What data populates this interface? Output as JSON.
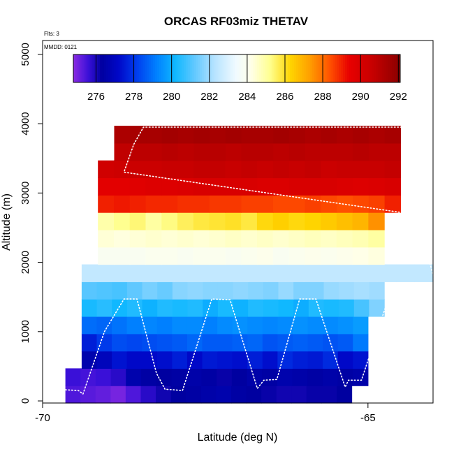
{
  "chart_data": {
    "type": "heatmap",
    "title": "ORCAS RF03miz THETAV",
    "xlabel": "Latitude (deg N)",
    "ylabel": "Altitude (m)",
    "notes": [
      "Flts: 3",
      "MMDD: 0121"
    ],
    "xlim": [
      -70,
      -64
    ],
    "ylim": [
      -30,
      5200
    ],
    "x_ticks": [
      {
        "value": -70,
        "label": "-70"
      },
      {
        "value": -65,
        "label": "-65"
      }
    ],
    "y_ticks": [
      {
        "value": 0,
        "label": "0"
      },
      {
        "value": 1000,
        "label": "1000"
      },
      {
        "value": 2000,
        "label": "2000"
      },
      {
        "value": 3000,
        "label": "3000"
      },
      {
        "value": 4000,
        "label": "4000"
      },
      {
        "value": 5000,
        "label": "5000"
      }
    ],
    "colorbar": {
      "range": [
        274.8,
        292.1
      ],
      "ticks": [
        {
          "value": 276,
          "label": "276"
        },
        {
          "value": 278,
          "label": "278"
        },
        {
          "value": 280,
          "label": "280"
        },
        {
          "value": 282,
          "label": "282"
        },
        {
          "value": 284,
          "label": "284"
        },
        {
          "value": 286,
          "label": "286"
        },
        {
          "value": 288,
          "label": "288"
        },
        {
          "value": 290,
          "label": "290"
        },
        {
          "value": 292,
          "label": "292"
        }
      ],
      "stops": [
        {
          "v": 274.8,
          "c": "#8a2be2"
        },
        {
          "v": 275.6,
          "c": "#3a10d8"
        },
        {
          "v": 276.3,
          "c": "#0000a0"
        },
        {
          "v": 277.2,
          "c": "#0008c8"
        },
        {
          "v": 278.2,
          "c": "#0040ee"
        },
        {
          "v": 279.2,
          "c": "#0080ff"
        },
        {
          "v": 280.2,
          "c": "#10b8ff"
        },
        {
          "v": 281.2,
          "c": "#60c8ff"
        },
        {
          "v": 282.3,
          "c": "#b8e4ff"
        },
        {
          "v": 283.4,
          "c": "#f0faff"
        },
        {
          "v": 284.2,
          "c": "#ffffe8"
        },
        {
          "v": 285.2,
          "c": "#ffff90"
        },
        {
          "v": 286.3,
          "c": "#ffd400"
        },
        {
          "v": 287.3,
          "c": "#ffa000"
        },
        {
          "v": 288.4,
          "c": "#ff5000"
        },
        {
          "v": 289.4,
          "c": "#e80000"
        },
        {
          "v": 290.6,
          "c": "#c80000"
        },
        {
          "v": 292.1,
          "c": "#8b0000"
        }
      ]
    },
    "bin_edges_alt": [
      -30,
      220,
      470,
      720,
      970,
      1220,
      1470,
      1720,
      1970,
      2220,
      2470,
      2720,
      2970,
      3220,
      3470,
      3720,
      3970
    ],
    "rows": [
      {
        "x0": -69.65,
        "x1": -65.25,
        "values": [
          275.4,
          275.3,
          275.2,
          275.0,
          275.4,
          275.8,
          276.1,
          276.3,
          276.4,
          276.5,
          276.6,
          276.4,
          276.3,
          276.2,
          276.1,
          276.1,
          276.2,
          276.2,
          276.3
        ]
      },
      {
        "x0": -69.65,
        "x1": -65.0,
        "values": [
          275.6,
          275.5,
          275.6,
          275.8,
          276.6,
          276.4,
          276.3,
          276.4,
          276.5,
          276.4,
          276.2,
          276.3,
          276.5,
          276.4,
          276.6,
          276.5,
          276.4,
          276.5,
          276.4,
          276.5
        ]
      },
      {
        "x0": -69.4,
        "x1": -65.0,
        "values": [
          276.6,
          276.9,
          277.4,
          277.2,
          277.2,
          277.3,
          277.6,
          277.2,
          277.5,
          277.4,
          277.3,
          277.6,
          277.3,
          277.8,
          277.6,
          277.5,
          277.8,
          277.2,
          277.4
        ]
      },
      {
        "x0": -69.4,
        "x1": -65.0,
        "values": [
          277.6,
          278.1,
          278.4,
          278.3,
          278.4,
          278.5,
          278.6,
          278.8,
          278.6,
          278.6,
          278.7,
          278.8,
          278.5,
          278.6,
          278.7,
          278.6,
          278.5,
          278.6,
          279.1
        ]
      },
      {
        "x0": -69.4,
        "x1": -65.0,
        "values": [
          278.9,
          278.8,
          279.0,
          279.2,
          279.3,
          279.2,
          279.4,
          279.4,
          279.2,
          279.4,
          279.5,
          279.4,
          279.3,
          279.4,
          279.5,
          279.4,
          279.4,
          279.5,
          279.7
        ]
      },
      {
        "x0": -69.4,
        "x1": -64.75,
        "values": [
          280.3,
          280.5,
          280.2,
          280.4,
          280.1,
          280.4,
          280.3,
          280.4,
          280.0,
          280.3,
          280.1,
          280.4,
          280.3,
          280.2,
          280.0,
          280.4,
          280.3,
          280.4,
          280.9,
          281.6
        ]
      },
      {
        "x0": -69.4,
        "x1": -64.75,
        "values": [
          281.1,
          281.0,
          280.9,
          281.2,
          281.5,
          281.3,
          281.7,
          281.8,
          281.7,
          281.7,
          281.8,
          281.7,
          281.6,
          281.9,
          281.6,
          281.6,
          281.9,
          282.0,
          282.1,
          282.0
        ]
      },
      {
        "x0": -69.4,
        "x1": -64.0,
        "values": [
          282.5,
          282.5,
          282.5,
          282.5,
          282.5,
          282.5,
          282.5,
          282.5,
          282.5,
          282.5,
          282.5,
          282.5,
          282.5,
          282.5,
          282.5,
          282.5,
          282.5,
          282.5,
          282.5
        ]
      },
      {
        "x0": -69.15,
        "x1": -64.75,
        "values": [
          283.9,
          283.9,
          283.9,
          284.0,
          284.0,
          283.9,
          284.0,
          284.0,
          283.9,
          284.0,
          284.1,
          283.9,
          284.0,
          284.1,
          284.0,
          284.1,
          284.2,
          284.3
        ]
      },
      {
        "x0": -69.15,
        "x1": -64.75,
        "values": [
          284.4,
          284.3,
          284.4,
          284.5,
          284.4,
          284.5,
          284.4,
          284.5,
          284.6,
          284.5,
          284.6,
          284.5,
          284.6,
          284.7,
          284.6,
          284.7,
          284.8,
          285.0
        ]
      },
      {
        "x0": -69.15,
        "x1": -64.75,
        "values": [
          284.9,
          285.2,
          285.4,
          285.0,
          285.3,
          285.6,
          285.8,
          285.9,
          286.0,
          285.8,
          286.2,
          286.4,
          286.2,
          286.3,
          286.5,
          286.7,
          286.9,
          287.5
        ]
      },
      {
        "x0": -69.15,
        "x1": -64.5,
        "values": [
          289.0,
          289.1,
          289.0,
          288.9,
          288.9,
          288.8,
          288.8,
          288.7,
          288.7,
          288.6,
          288.6,
          288.5,
          288.5,
          288.6,
          288.5,
          288.4,
          288.5,
          288.6,
          289.0
        ]
      },
      {
        "x0": -69.15,
        "x1": -64.5,
        "values": [
          289.6,
          289.6,
          289.7,
          289.8,
          289.8,
          289.9,
          290.0,
          290.0,
          290.0,
          290.0,
          289.9,
          289.9,
          290.0,
          290.0,
          290.0,
          289.9,
          289.8,
          289.9,
          290.0
        ]
      },
      {
        "x0": -69.15,
        "x1": -64.5,
        "values": [
          290.3,
          290.4,
          290.5,
          290.5,
          290.6,
          290.6,
          290.7,
          290.7,
          290.6,
          290.7,
          290.6,
          290.7,
          290.6,
          290.7,
          290.5,
          290.6,
          290.6,
          290.6,
          290.7
        ]
      },
      {
        "x0": -68.9,
        "x1": -64.5,
        "values": [
          290.8,
          290.9,
          290.9,
          291.0,
          290.9,
          291.0,
          291.0,
          290.9,
          291.0,
          291.0,
          290.9,
          291.0,
          290.9,
          290.9,
          290.9,
          291.0,
          290.9,
          290.9
        ]
      },
      {
        "x0": -68.9,
        "x1": -64.5,
        "values": [
          291.3,
          291.4,
          291.4,
          291.5,
          291.4,
          291.5,
          291.4,
          291.5,
          291.4,
          291.4,
          291.5,
          291.4,
          291.3,
          291.4,
          291.3,
          291.4,
          291.3,
          291.4
        ]
      }
    ],
    "flight_track": [
      {
        "lat": -69.65,
        "alt": 160
      },
      {
        "lat": -69.45,
        "alt": 150
      },
      {
        "lat": -69.38,
        "alt": 100
      },
      {
        "lat": -69.05,
        "alt": 1000
      },
      {
        "lat": -68.75,
        "alt": 1470
      },
      {
        "lat": -68.55,
        "alt": 1470
      },
      {
        "lat": -68.25,
        "alt": 400
      },
      {
        "lat": -68.12,
        "alt": 170
      },
      {
        "lat": -67.85,
        "alt": 150
      },
      {
        "lat": -67.55,
        "alt": 1030
      },
      {
        "lat": -67.4,
        "alt": 1470
      },
      {
        "lat": -67.12,
        "alt": 1460
      },
      {
        "lat": -66.7,
        "alt": 180
      },
      {
        "lat": -66.6,
        "alt": 300
      },
      {
        "lat": -66.4,
        "alt": 310
      },
      {
        "lat": -66.05,
        "alt": 1470
      },
      {
        "lat": -65.8,
        "alt": 1470
      },
      {
        "lat": -65.35,
        "alt": 200
      },
      {
        "lat": -65.3,
        "alt": 300
      },
      {
        "lat": -65.1,
        "alt": 300
      },
      {
        "lat": -64.7,
        "alt": 1440
      },
      {
        "lat": -64.42,
        "alt": 1450
      },
      {
        "lat": -64.08,
        "alt": 180
      },
      {
        "lat": -63.9,
        "alt": 300
      },
      {
        "lat": -63.68,
        "alt": 400
      },
      {
        "lat": -63.55,
        "alt": 330
      },
      {
        "lat": -63.35,
        "alt": 320
      },
      {
        "lat": -63.7,
        "alt": 800
      },
      {
        "lat": -64.2,
        "alt": 2500
      },
      {
        "lat": -64.35,
        "alt": 2700
      },
      {
        "lat": -68.75,
        "alt": 3300
      },
      {
        "lat": -68.6,
        "alt": 3700
      },
      {
        "lat": -68.45,
        "alt": 3950
      },
      {
        "lat": -64.3,
        "alt": 3950
      }
    ]
  }
}
